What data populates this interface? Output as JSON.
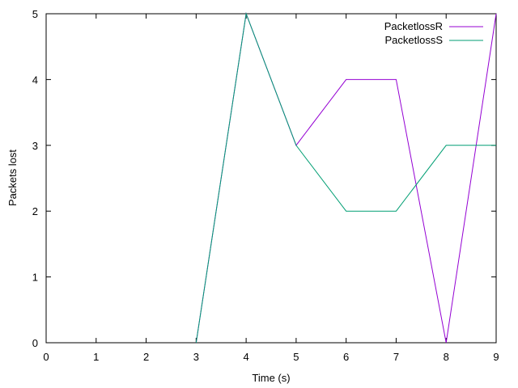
{
  "chart_data": {
    "type": "line",
    "title": "",
    "xlabel": "Time (s)",
    "ylabel": "Packets lost",
    "xlim": [
      0,
      9
    ],
    "ylim": [
      0,
      5
    ],
    "xticks": [
      "0",
      "1",
      "2",
      "3",
      "4",
      "5",
      "6",
      "7",
      "8",
      "9"
    ],
    "yticks": [
      "0",
      "1",
      "2",
      "3",
      "4",
      "5"
    ],
    "grid": false,
    "legend_position": "top-right",
    "series": [
      {
        "name": "PacketlossR",
        "color": "#9400d3",
        "x": [
          3,
          4,
          5,
          6,
          7,
          8,
          9
        ],
        "y": [
          0,
          5,
          3,
          4,
          4,
          0,
          5
        ]
      },
      {
        "name": "PacketlossS",
        "color": "#009e73",
        "x": [
          3,
          4,
          5,
          6,
          7,
          8,
          9
        ],
        "y": [
          0,
          5,
          3,
          2,
          2,
          3,
          3
        ]
      }
    ]
  }
}
